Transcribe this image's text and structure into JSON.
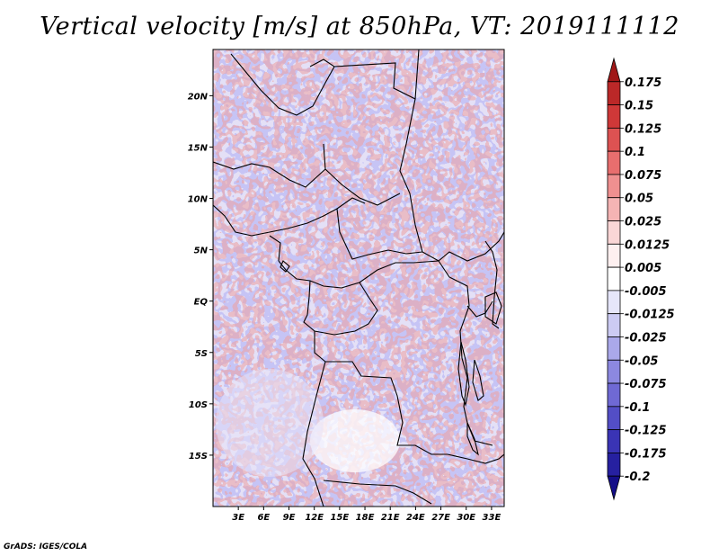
{
  "title": "Vertical velocity [m/s] at 850hPa, VT: 2019111112",
  "credit": "GrADS: IGES/COLA",
  "map": {
    "lat_ticks": [
      "20N",
      "15N",
      "10N",
      "5N",
      "EQ",
      "5S",
      "10S",
      "15S"
    ],
    "lat_values": [
      20,
      15,
      10,
      5,
      0,
      -5,
      -10,
      -15
    ],
    "lon_ticks": [
      "3E",
      "6E",
      "9E",
      "12E",
      "15E",
      "18E",
      "21E",
      "24E",
      "27E",
      "30E",
      "33E"
    ],
    "lon_values": [
      3,
      6,
      9,
      12,
      15,
      18,
      21,
      24,
      27,
      30,
      33
    ],
    "lon_range": [
      0,
      34.5
    ],
    "lat_range": [
      -20,
      24.5
    ]
  },
  "colorbar": {
    "labels": [
      "0.175",
      "0.15",
      "0.125",
      "0.1",
      "0.075",
      "0.05",
      "0.025",
      "0.0125",
      "0.005",
      "-0.005",
      "-0.0125",
      "-0.025",
      "-0.05",
      "-0.075",
      "-0.1",
      "-0.125",
      "-0.175",
      "-0.2"
    ],
    "colors": [
      "#a01818",
      "#bb2828",
      "#cf3838",
      "#dd5252",
      "#e86e6e",
      "#ef9090",
      "#f5b4b4",
      "#fad6d6",
      "#fef0f0",
      "#ffffff",
      "#e6e6fa",
      "#cccbf3",
      "#aaa8ea",
      "#8c88e0",
      "#6f69d4",
      "#534ec6",
      "#3a34b5",
      "#2620a0",
      "#140e88"
    ]
  }
}
